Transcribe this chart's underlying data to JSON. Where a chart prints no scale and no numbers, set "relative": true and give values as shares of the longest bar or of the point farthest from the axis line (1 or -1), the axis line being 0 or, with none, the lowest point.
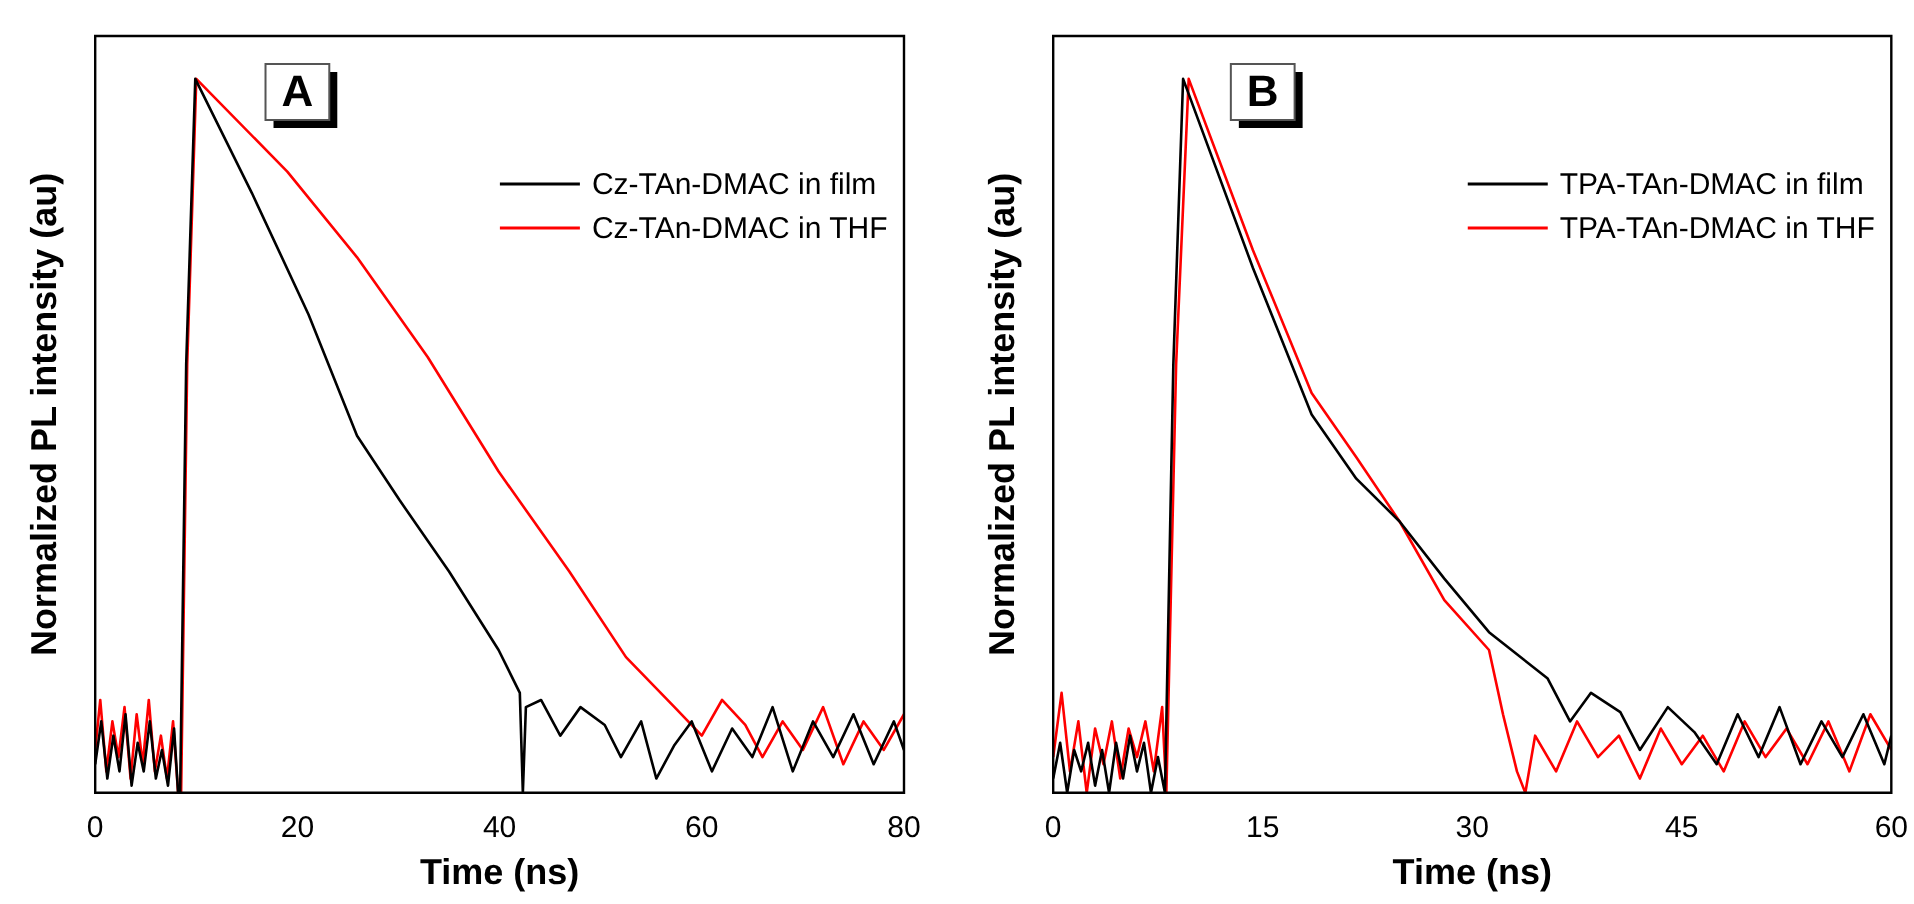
{
  "chart_data": [
    {
      "type": "line",
      "relative": true,
      "annotations": [
        "A"
      ],
      "xlabel": "Time (ns)",
      "ylabel": "Normalized PL intensity (au)",
      "xlim": [
        0,
        80
      ],
      "xticks": [
        0,
        20,
        40,
        60,
        80
      ],
      "legend": "top right",
      "grid": false,
      "series": [
        {
          "name": "Cz-TAn-DMAC in film",
          "color": "#000000",
          "x": [
            0,
            0.6,
            1.2,
            1.8,
            2.4,
            3,
            3.6,
            4.2,
            4.8,
            5.4,
            6,
            6.6,
            7.2,
            7.8,
            8.2,
            8.4,
            9.0,
            9.9,
            15.5,
            21.1,
            25.9,
            30.1,
            35.0,
            39.9,
            42.0,
            42.3,
            42.6,
            44.1,
            46,
            48,
            50.4,
            52,
            54,
            55.5,
            57.3,
            59,
            61,
            63,
            65,
            67,
            69,
            71,
            73,
            75,
            77,
            79,
            80
          ],
          "values": [
            0.04,
            0.1,
            0.02,
            0.08,
            0.03,
            0.11,
            0.01,
            0.07,
            0.03,
            0.1,
            0.02,
            0.06,
            0.01,
            0.09,
            0.0,
            0.0,
            0.6,
            1.0,
            0.84,
            0.67,
            0.5,
            0.41,
            0.31,
            0.2,
            0.14,
            0.0,
            0.12,
            0.13,
            0.08,
            0.12,
            0.095,
            0.05,
            0.1,
            0.02,
            0.067,
            0.1,
            0.03,
            0.09,
            0.05,
            0.12,
            0.03,
            0.1,
            0.05,
            0.11,
            0.04,
            0.1,
            0.06
          ]
        },
        {
          "name": "Cz-TAn-DMAC in THF",
          "color": "#ff0000",
          "x": [
            0,
            0.5,
            1.1,
            1.7,
            2.3,
            2.9,
            3.5,
            4.1,
            4.7,
            5.3,
            5.9,
            6.5,
            7.1,
            7.7,
            8.2,
            8.5,
            9.1,
            10.0,
            19.0,
            25.9,
            32.9,
            39.9,
            46.9,
            52.5,
            57.3,
            60,
            62,
            64.3,
            66,
            68,
            70,
            72,
            74,
            76,
            78,
            80
          ],
          "values": [
            0.06,
            0.13,
            0.03,
            0.1,
            0.05,
            0.12,
            0.02,
            0.11,
            0.04,
            0.13,
            0.03,
            0.08,
            0.02,
            0.1,
            0.0,
            0.0,
            0.6,
            1.0,
            0.87,
            0.75,
            0.61,
            0.45,
            0.31,
            0.19,
            0.12,
            0.08,
            0.13,
            0.095,
            0.05,
            0.1,
            0.06,
            0.12,
            0.04,
            0.1,
            0.06,
            0.11
          ]
        }
      ]
    },
    {
      "type": "line",
      "relative": true,
      "annotations": [
        "B"
      ],
      "xlabel": "Time (ns)",
      "ylabel": "Normalized PL intensity (au)",
      "xlim": [
        0,
        60
      ],
      "xticks": [
        0,
        15,
        30,
        45,
        60
      ],
      "legend": "top right",
      "grid": false,
      "series": [
        {
          "name": "TPA-TAn-DMAC in film",
          "color": "#000000",
          "x": [
            0,
            0.5,
            1,
            1.5,
            2,
            2.5,
            3,
            3.5,
            4,
            4.5,
            5,
            5.5,
            6,
            6.5,
            7,
            7.5,
            8.0,
            8.6,
            9.3,
            14.3,
            18.5,
            21.7,
            24.8,
            28.0,
            31.2,
            35.4,
            37,
            38.5,
            40.6,
            42,
            44,
            45.9,
            47.5,
            49,
            50.5,
            52,
            53.5,
            55,
            56.5,
            58,
            59.5,
            60
          ],
          "values": [
            0.02,
            0.07,
            0.0,
            0.06,
            0.03,
            0.07,
            0.01,
            0.06,
            0.0,
            0.07,
            0.02,
            0.08,
            0.03,
            0.07,
            0.0,
            0.05,
            0.0,
            0.6,
            1.0,
            0.735,
            0.53,
            0.44,
            0.38,
            0.3,
            0.225,
            0.16,
            0.1,
            0.14,
            0.113,
            0.06,
            0.12,
            0.085,
            0.04,
            0.11,
            0.05,
            0.12,
            0.04,
            0.1,
            0.05,
            0.11,
            0.04,
            0.08
          ]
        },
        {
          "name": "TPA-TAn-DMAC in THF",
          "color": "#ff0000",
          "x": [
            0,
            0.6,
            1.2,
            1.8,
            2.4,
            3,
            3.6,
            4.2,
            4.8,
            5.4,
            6,
            6.6,
            7.2,
            7.8,
            8.1,
            8.8,
            9.7,
            14.3,
            18.5,
            21.7,
            24.8,
            28.0,
            31.2,
            32.2,
            33.2,
            33.8,
            34.5,
            36,
            37.5,
            39,
            40.5,
            42,
            43.5,
            45,
            46.5,
            48,
            49.5,
            51,
            52.5,
            54,
            55.5,
            57,
            58.5,
            60
          ],
          "values": [
            0.05,
            0.14,
            0.03,
            0.1,
            0.0,
            0.09,
            0.04,
            0.1,
            0.02,
            0.09,
            0.05,
            0.1,
            0.03,
            0.12,
            0.0,
            0.6,
            1.0,
            0.76,
            0.56,
            0.47,
            0.38,
            0.27,
            0.2,
            0.11,
            0.03,
            0.0,
            0.08,
            0.03,
            0.1,
            0.05,
            0.08,
            0.02,
            0.09,
            0.04,
            0.08,
            0.03,
            0.1,
            0.05,
            0.09,
            0.04,
            0.1,
            0.03,
            0.11,
            0.06
          ]
        }
      ]
    }
  ]
}
